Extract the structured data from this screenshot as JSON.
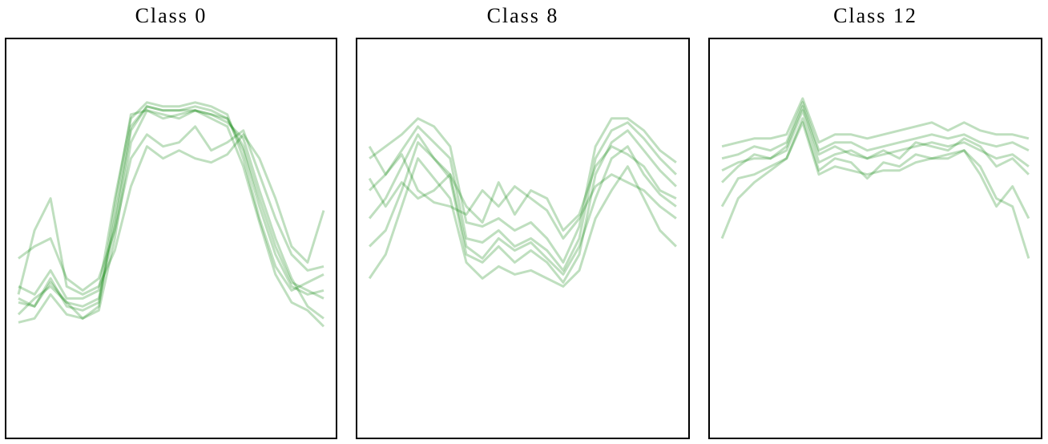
{
  "chart_data": [
    {
      "type": "line",
      "title": "Class 0",
      "color": "#008000",
      "x": [
        0,
        1,
        2,
        3,
        4,
        5,
        6,
        7,
        8,
        9,
        10,
        11,
        12,
        13,
        14,
        15,
        16,
        17,
        18,
        19
      ],
      "xlim": [
        -0.8,
        19.8
      ],
      "ylim": [
        0,
        100
      ],
      "series": [
        {
          "values": [
            34,
            33,
            40,
            33,
            32,
            34,
            55,
            78,
            83,
            82,
            82,
            83,
            82,
            80,
            72,
            58,
            46,
            38,
            36,
            37
          ]
        },
        {
          "values": [
            31,
            35,
            38,
            34,
            30,
            32,
            50,
            74,
            82,
            81,
            80,
            82,
            81,
            79,
            75,
            62,
            50,
            40,
            33,
            30
          ]
        },
        {
          "values": [
            38,
            36,
            42,
            35,
            35,
            37,
            60,
            80,
            84,
            83,
            83,
            84,
            83,
            81,
            70,
            55,
            43,
            37,
            39,
            41
          ]
        },
        {
          "values": [
            45,
            48,
            50,
            40,
            37,
            40,
            52,
            70,
            76,
            73,
            74,
            78,
            72,
            74,
            77,
            66,
            55,
            46,
            42,
            43
          ]
        },
        {
          "values": [
            29,
            30,
            36,
            31,
            30,
            33,
            58,
            81,
            82,
            80,
            81,
            82,
            80,
            78,
            68,
            54,
            41,
            34,
            32,
            28
          ]
        },
        {
          "values": [
            36,
            52,
            60,
            38,
            36,
            38,
            47,
            63,
            73,
            70,
            72,
            70,
            69,
            71,
            76,
            70,
            60,
            48,
            44,
            57
          ]
        },
        {
          "values": [
            35,
            33,
            39,
            34,
            33,
            35,
            53,
            77,
            83,
            82,
            82,
            82,
            81,
            80,
            73,
            60,
            48,
            39,
            37,
            35
          ]
        }
      ]
    },
    {
      "type": "line",
      "title": "Class 8",
      "color": "#008000",
      "x": [
        0,
        1,
        2,
        3,
        4,
        5,
        6,
        7,
        8,
        9,
        10,
        11,
        12,
        13,
        14,
        15,
        16,
        17,
        18,
        19
      ],
      "xlim": [
        -0.8,
        19.8
      ],
      "ylim": [
        0,
        100
      ],
      "series": [
        {
          "values": [
            62,
            66,
            72,
            78,
            74,
            70,
            50,
            49,
            52,
            48,
            50,
            47,
            42,
            50,
            70,
            77,
            79,
            75,
            70,
            66
          ]
        },
        {
          "values": [
            55,
            60,
            68,
            76,
            70,
            65,
            46,
            44,
            48,
            44,
            47,
            44,
            39,
            46,
            66,
            74,
            77,
            72,
            67,
            63
          ]
        },
        {
          "values": [
            70,
            73,
            76,
            80,
            78,
            73,
            54,
            53,
            55,
            52,
            54,
            50,
            44,
            53,
            73,
            80,
            80,
            77,
            72,
            69
          ]
        },
        {
          "values": [
            40,
            46,
            58,
            70,
            65,
            60,
            44,
            40,
            43,
            41,
            42,
            40,
            38,
            42,
            55,
            62,
            68,
            60,
            52,
            48
          ]
        },
        {
          "values": [
            73,
            66,
            71,
            62,
            59,
            58,
            56,
            62,
            58,
            63,
            60,
            57,
            50,
            55,
            63,
            66,
            64,
            62,
            58,
            55
          ]
        },
        {
          "values": [
            48,
            52,
            62,
            74,
            70,
            66,
            48,
            45,
            50,
            47,
            49,
            45,
            41,
            48,
            60,
            70,
            73,
            66,
            61,
            58
          ]
        },
        {
          "values": [
            65,
            58,
            64,
            60,
            62,
            66,
            58,
            54,
            64,
            56,
            62,
            60,
            52,
            56,
            68,
            73,
            71,
            68,
            62,
            60
          ]
        }
      ]
    },
    {
      "type": "line",
      "title": "Class 12",
      "color": "#008000",
      "x": [
        0,
        1,
        2,
        3,
        4,
        5,
        6,
        7,
        8,
        9,
        10,
        11,
        12,
        13,
        14,
        15,
        16,
        17,
        18,
        19
      ],
      "xlim": [
        -0.8,
        19.8
      ],
      "ylim": [
        0,
        100
      ],
      "series": [
        {
          "values": [
            70,
            71,
            73,
            72,
            74,
            84,
            72,
            74,
            74,
            72,
            73,
            74,
            75,
            76,
            75,
            76,
            74,
            73,
            74,
            72
          ]
        },
        {
          "values": [
            67,
            69,
            70,
            70,
            72,
            82,
            69,
            71,
            72,
            70,
            71,
            72,
            73,
            74,
            73,
            74,
            72,
            70,
            71,
            68
          ]
        },
        {
          "values": [
            73,
            74,
            75,
            75,
            76,
            85,
            74,
            76,
            76,
            75,
            76,
            77,
            78,
            79,
            77,
            79,
            77,
            76,
            76,
            75
          ]
        },
        {
          "values": [
            58,
            65,
            66,
            68,
            70,
            79,
            66,
            68,
            67,
            66,
            67,
            67,
            69,
            70,
            70,
            72,
            66,
            58,
            63,
            55
          ]
        },
        {
          "values": [
            50,
            60,
            64,
            67,
            70,
            80,
            67,
            70,
            69,
            65,
            69,
            68,
            71,
            70,
            71,
            72,
            68,
            60,
            58,
            45
          ]
        },
        {
          "values": [
            64,
            68,
            71,
            70,
            73,
            83,
            71,
            73,
            71,
            70,
            72,
            70,
            74,
            73,
            72,
            75,
            73,
            68,
            70,
            66
          ]
        }
      ]
    }
  ]
}
